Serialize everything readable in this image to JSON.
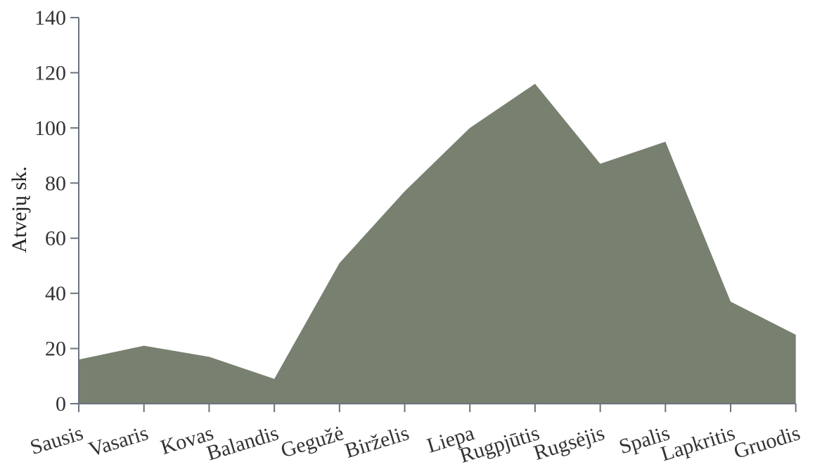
{
  "chart_data": {
    "type": "area",
    "title": "",
    "xlabel": "",
    "ylabel": "Atvejų sk.",
    "categories": [
      "Sausis",
      "Vasaris",
      "Kovas",
      "Balandis",
      "Gegužė",
      "Birželis",
      "Liepa",
      "Rugpjūtis",
      "Rugsėjis",
      "Spalis",
      "Lapkritis",
      "Gruodis"
    ],
    "series": [
      {
        "name": "",
        "values": [
          16,
          21,
          17,
          9,
          51,
          77,
          100,
          116,
          87,
          95,
          37,
          25
        ]
      }
    ],
    "ylim": [
      0,
      140
    ],
    "yticks": [
      0,
      20,
      40,
      60,
      80,
      100,
      120,
      140
    ],
    "grid": false,
    "legend": "none",
    "colors": {
      "area_fill": "#788070",
      "axis": "#6b7280",
      "text": "#333333"
    }
  }
}
